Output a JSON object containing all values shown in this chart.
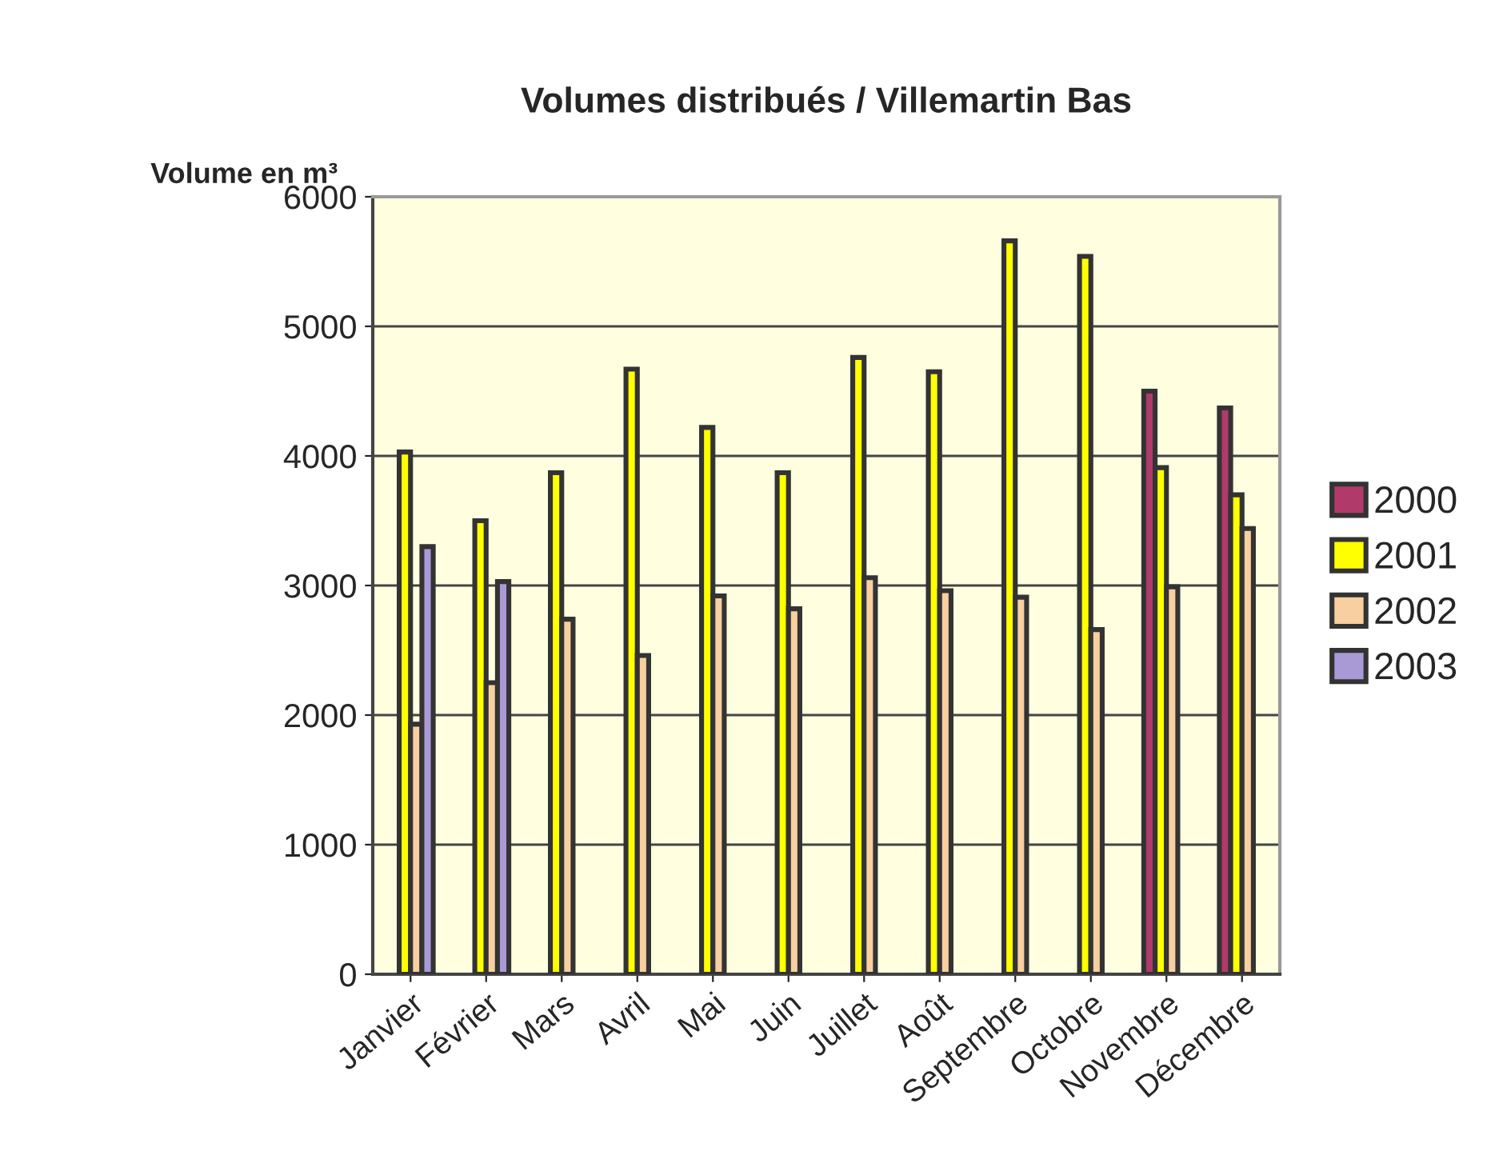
{
  "chart_data": {
    "type": "bar",
    "title": "Volumes distribués / Villemartin Bas",
    "ylabel": "Volume en m³",
    "categories": [
      "Janvier",
      "Février",
      "Mars",
      "Avril",
      "Mai",
      "Juin",
      "Juillet",
      "Août",
      "Septembre",
      "Octobre",
      "Novembre",
      "Décembre"
    ],
    "series": [
      {
        "name": "2000",
        "color": "#b03a6a",
        "values": [
          null,
          null,
          null,
          null,
          null,
          null,
          null,
          null,
          null,
          null,
          4500,
          4370
        ]
      },
      {
        "name": "2001",
        "color": "#ffff00",
        "values": [
          4030,
          3500,
          3870,
          4670,
          4220,
          3870,
          4760,
          4650,
          5660,
          5540,
          3910,
          3700
        ]
      },
      {
        "name": "2002",
        "color": "#f8cfa0",
        "values": [
          1930,
          2250,
          2740,
          2460,
          2920,
          2820,
          3060,
          2960,
          2910,
          2660,
          2990,
          3440
        ]
      },
      {
        "name": "2003",
        "color": "#a99ad6",
        "values": [
          3300,
          3030,
          null,
          null,
          null,
          null,
          null,
          null,
          null,
          null,
          null,
          null
        ]
      }
    ],
    "ylim": [
      0,
      6000
    ],
    "yticks": [
      0,
      1000,
      2000,
      3000,
      4000,
      5000,
      6000
    ],
    "grid": "y",
    "legend": "right"
  }
}
